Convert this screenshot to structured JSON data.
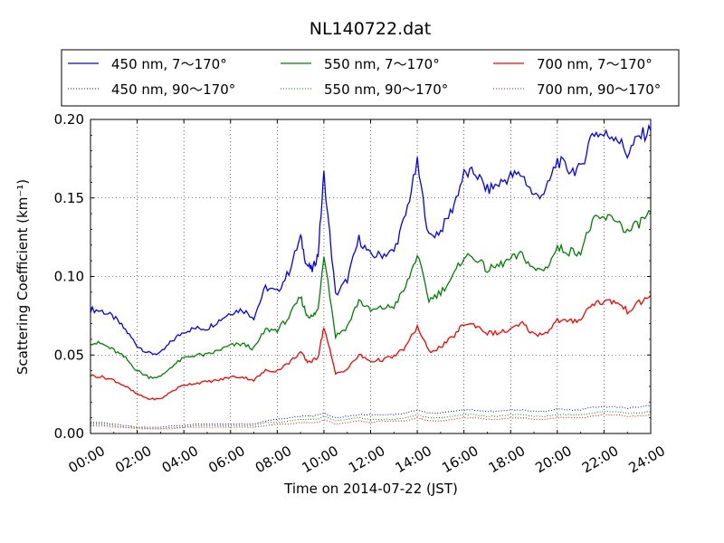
{
  "chart_data": {
    "type": "line",
    "title": "NL140722.dat",
    "xlabel": "Time on 2014-07-22 (JST)",
    "ylabel": "Scattering Coefficient (km⁻¹)",
    "xlim_hours": [
      0,
      24
    ],
    "ylim": [
      0,
      0.2
    ],
    "x_ticks": [
      "00:00",
      "02:00",
      "04:00",
      "06:00",
      "08:00",
      "10:00",
      "12:00",
      "14:00",
      "16:00",
      "18:00",
      "20:00",
      "22:00",
      "24:00"
    ],
    "y_ticks": [
      "0.00",
      "0.05",
      "0.10",
      "0.15",
      "0.20"
    ],
    "grid": true,
    "legend_position": "top",
    "x_hours": [
      0,
      0.5,
      1,
      1.5,
      2,
      2.5,
      3,
      3.5,
      4,
      4.5,
      5,
      5.5,
      6,
      6.5,
      7,
      7.5,
      8,
      8.5,
      9,
      9.25,
      9.5,
      9.75,
      10,
      10.5,
      11,
      11.5,
      12,
      12.5,
      13,
      13.5,
      14,
      14.5,
      15,
      15.5,
      16,
      16.5,
      17,
      17.5,
      18,
      18.5,
      19,
      19.5,
      20,
      20.5,
      21,
      21.5,
      22,
      22.5,
      23,
      23.5,
      24
    ],
    "series": [
      {
        "name": "450 nm, 7～170°",
        "color": "#0000ff",
        "style": "solid",
        "values": [
          0.079,
          0.078,
          0.074,
          0.066,
          0.056,
          0.051,
          0.051,
          0.059,
          0.065,
          0.067,
          0.067,
          0.072,
          0.077,
          0.079,
          0.074,
          0.093,
          0.09,
          0.103,
          0.125,
          0.108,
          0.104,
          0.114,
          0.165,
          0.088,
          0.098,
          0.124,
          0.113,
          0.114,
          0.116,
          0.139,
          0.172,
          0.125,
          0.129,
          0.143,
          0.165,
          0.166,
          0.155,
          0.159,
          0.164,
          0.165,
          0.151,
          0.154,
          0.174,
          0.168,
          0.168,
          0.192,
          0.19,
          0.19,
          0.178,
          0.189,
          0.193
        ]
      },
      {
        "name": "450 nm, 90～170°",
        "color": "#0000ff",
        "style": "dotted",
        "values": [
          0.007,
          0.007,
          0.006,
          0.005,
          0.004,
          0.004,
          0.004,
          0.005,
          0.005,
          0.006,
          0.006,
          0.006,
          0.006,
          0.006,
          0.006,
          0.008,
          0.009,
          0.01,
          0.011,
          0.011,
          0.011,
          0.012,
          0.013,
          0.01,
          0.011,
          0.012,
          0.012,
          0.012,
          0.012,
          0.013,
          0.015,
          0.013,
          0.013,
          0.014,
          0.015,
          0.015,
          0.014,
          0.014,
          0.015,
          0.015,
          0.014,
          0.014,
          0.016,
          0.015,
          0.015,
          0.017,
          0.017,
          0.017,
          0.016,
          0.017,
          0.018
        ]
      },
      {
        "name": "550 nm, 7～170°",
        "color": "#008000",
        "style": "solid",
        "values": [
          0.058,
          0.057,
          0.053,
          0.048,
          0.04,
          0.036,
          0.036,
          0.043,
          0.048,
          0.05,
          0.05,
          0.053,
          0.056,
          0.057,
          0.054,
          0.066,
          0.066,
          0.074,
          0.087,
          0.076,
          0.074,
          0.079,
          0.115,
          0.062,
          0.068,
          0.085,
          0.078,
          0.08,
          0.081,
          0.093,
          0.114,
          0.085,
          0.09,
          0.099,
          0.113,
          0.112,
          0.104,
          0.107,
          0.111,
          0.114,
          0.104,
          0.105,
          0.118,
          0.116,
          0.116,
          0.135,
          0.137,
          0.137,
          0.128,
          0.134,
          0.141
        ]
      },
      {
        "name": "550 nm, 90～170°",
        "color": "#008000",
        "style": "dotted",
        "values": [
          0.006,
          0.006,
          0.005,
          0.004,
          0.004,
          0.003,
          0.003,
          0.004,
          0.004,
          0.005,
          0.005,
          0.005,
          0.005,
          0.005,
          0.005,
          0.007,
          0.007,
          0.008,
          0.009,
          0.009,
          0.009,
          0.009,
          0.011,
          0.008,
          0.009,
          0.01,
          0.009,
          0.009,
          0.009,
          0.01,
          0.012,
          0.01,
          0.01,
          0.011,
          0.012,
          0.012,
          0.011,
          0.011,
          0.012,
          0.012,
          0.011,
          0.011,
          0.012,
          0.012,
          0.012,
          0.013,
          0.014,
          0.014,
          0.013,
          0.013,
          0.014
        ]
      },
      {
        "name": "700 nm, 7～170°",
        "color": "#ff0000",
        "style": "solid",
        "values": [
          0.037,
          0.036,
          0.034,
          0.03,
          0.025,
          0.022,
          0.022,
          0.027,
          0.031,
          0.032,
          0.033,
          0.034,
          0.036,
          0.036,
          0.034,
          0.04,
          0.04,
          0.045,
          0.052,
          0.046,
          0.046,
          0.049,
          0.068,
          0.038,
          0.041,
          0.05,
          0.046,
          0.047,
          0.049,
          0.055,
          0.068,
          0.052,
          0.055,
          0.061,
          0.07,
          0.069,
          0.064,
          0.064,
          0.066,
          0.07,
          0.063,
          0.064,
          0.072,
          0.071,
          0.073,
          0.083,
          0.084,
          0.084,
          0.078,
          0.083,
          0.088
        ]
      },
      {
        "name": "700 nm, 90～170°",
        "color": "#ff0000",
        "style": "dotted",
        "values": [
          0.005,
          0.005,
          0.004,
          0.004,
          0.003,
          0.003,
          0.003,
          0.003,
          0.004,
          0.004,
          0.004,
          0.004,
          0.004,
          0.004,
          0.004,
          0.005,
          0.006,
          0.006,
          0.007,
          0.007,
          0.007,
          0.007,
          0.009,
          0.006,
          0.007,
          0.008,
          0.007,
          0.008,
          0.008,
          0.008,
          0.01,
          0.008,
          0.008,
          0.009,
          0.01,
          0.01,
          0.009,
          0.009,
          0.01,
          0.01,
          0.009,
          0.009,
          0.01,
          0.01,
          0.01,
          0.011,
          0.012,
          0.012,
          0.011,
          0.011,
          0.012
        ]
      }
    ]
  }
}
